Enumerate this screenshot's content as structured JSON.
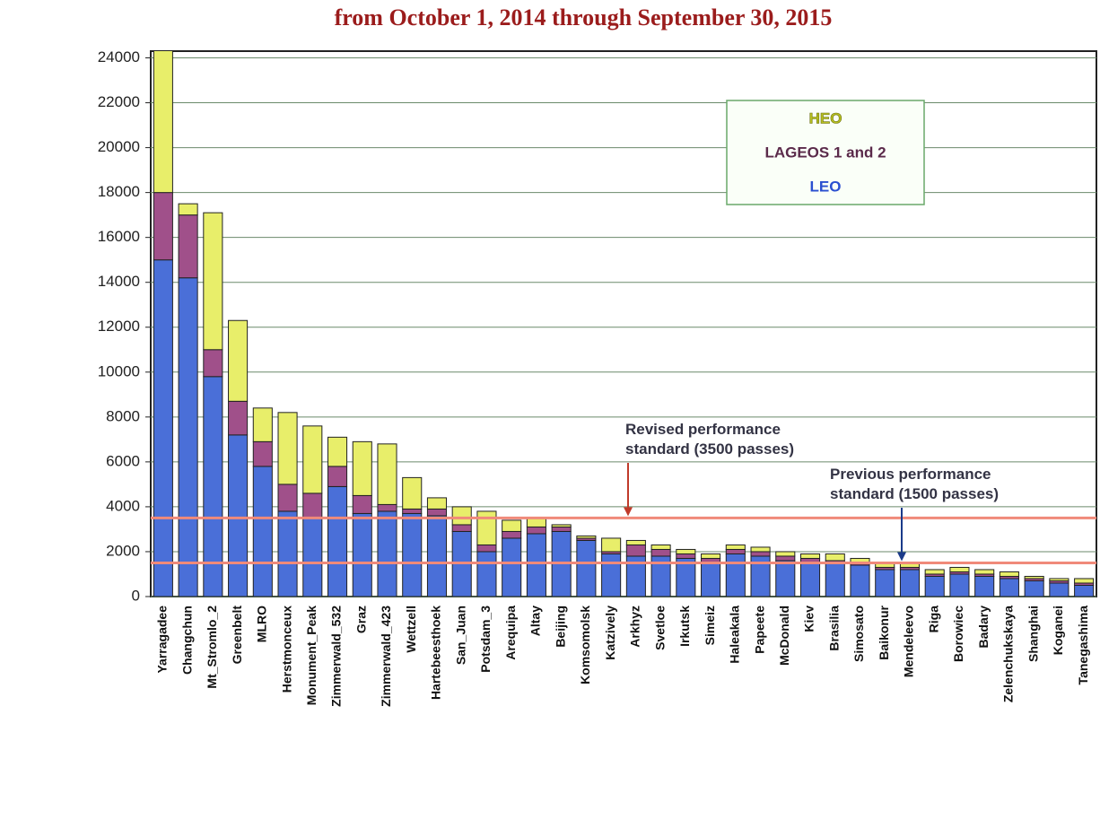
{
  "chart_data": {
    "type": "stacked_bar",
    "title": "from October 1, 2014 through  September 30, 2015",
    "categories": [
      "Yarragadee",
      "Changchun",
      "Mt_Stromlo_2",
      "Greenbelt",
      "MLRO",
      "Herstmonceux",
      "Monument_Peak",
      "Zimmerwald_532",
      "Graz",
      "Zimmerwald_423",
      "Wettzell",
      "Hartebeesthoek",
      "San_Juan",
      "Potsdam_3",
      "Arequipa",
      "Altay",
      "Beijing",
      "Komsomolsk",
      "Katzively",
      "Arkhyz",
      "Svetloe",
      "Irkutsk",
      "Simeiz",
      "Haleakala",
      "Papeete",
      "McDonald",
      "Kiev",
      "Brasilia",
      "Simosato",
      "Baikonur",
      "Mendeleevo",
      "Riga",
      "Borowiec",
      "Badary",
      "Zelenchukskaya",
      "Shanghai",
      "Koganei",
      "Tanegashima"
    ],
    "series": [
      {
        "name": "LEO",
        "color": "#4a6fd8",
        "values": [
          15000,
          14200,
          9800,
          7200,
          5800,
          3800,
          3500,
          4900,
          3700,
          3800,
          3700,
          3600,
          2900,
          2000,
          2600,
          2800,
          2900,
          2500,
          1900,
          1800,
          1800,
          1700,
          1500,
          1900,
          1800,
          1600,
          1500,
          1500,
          1400,
          1200,
          1200,
          900,
          1000,
          900,
          800,
          700,
          600,
          500
        ]
      },
      {
        "name": "LAGEOS 1 and 2",
        "color": "#a0508a",
        "values": [
          3000,
          2800,
          1200,
          1500,
          1100,
          1200,
          1100,
          900,
          800,
          300,
          200,
          300,
          300,
          300,
          300,
          300,
          200,
          100,
          100,
          500,
          300,
          200,
          200,
          200,
          200,
          200,
          200,
          100,
          100,
          100,
          100,
          100,
          100,
          100,
          100,
          100,
          100,
          100
        ]
      },
      {
        "name": "HEO",
        "color": "#e8ee6a",
        "values": [
          7000,
          500,
          6100,
          3600,
          1500,
          3200,
          3000,
          1300,
          2400,
          2700,
          1400,
          500,
          800,
          1500,
          500,
          400,
          100,
          100,
          600,
          200,
          200,
          200,
          200,
          200,
          200,
          200,
          200,
          300,
          200,
          200,
          200,
          200,
          200,
          200,
          200,
          100,
          100,
          200
        ]
      }
    ],
    "standards": [
      {
        "value": 3500,
        "label": "Revised performance standard (3500 passes)"
      },
      {
        "value": 1500,
        "label": "Previous performance standard (1500 passes)"
      }
    ],
    "ylim": [
      0,
      24300
    ],
    "yticks": [
      0,
      2000,
      4000,
      6000,
      8000,
      10000,
      12000,
      14000,
      16000,
      18000,
      20000,
      22000,
      24000
    ],
    "grid": true
  }
}
